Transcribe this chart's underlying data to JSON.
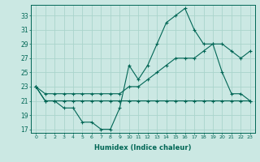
{
  "xlabel": "Humidex (Indice chaleur)",
  "x": [
    0,
    1,
    2,
    3,
    4,
    5,
    6,
    7,
    8,
    9,
    10,
    11,
    12,
    13,
    14,
    15,
    16,
    17,
    18,
    19,
    20,
    21,
    22,
    23
  ],
  "line1": [
    23,
    21,
    21,
    20,
    20,
    18,
    18,
    17,
    17,
    20,
    26,
    24,
    26,
    29,
    32,
    33,
    34,
    31,
    29,
    29,
    25,
    22,
    22,
    21
  ],
  "line2": [
    23,
    22,
    22,
    22,
    22,
    22,
    22,
    22,
    22,
    22,
    23,
    23,
    24,
    25,
    26,
    27,
    27,
    27,
    28,
    29,
    29,
    28,
    27,
    28
  ],
  "line3": [
    23,
    21,
    21,
    21,
    21,
    21,
    21,
    21,
    21,
    21,
    21,
    21,
    21,
    21,
    21,
    21,
    21,
    21,
    21,
    21,
    21,
    21,
    21,
    21
  ],
  "bg_color": "#cbe8e3",
  "grid_color": "#aad4cc",
  "line_color": "#006655",
  "ylim": [
    16.5,
    34.5
  ],
  "yticks": [
    17,
    19,
    21,
    23,
    25,
    27,
    29,
    31,
    33
  ],
  "xlim": [
    -0.5,
    23.5
  ]
}
